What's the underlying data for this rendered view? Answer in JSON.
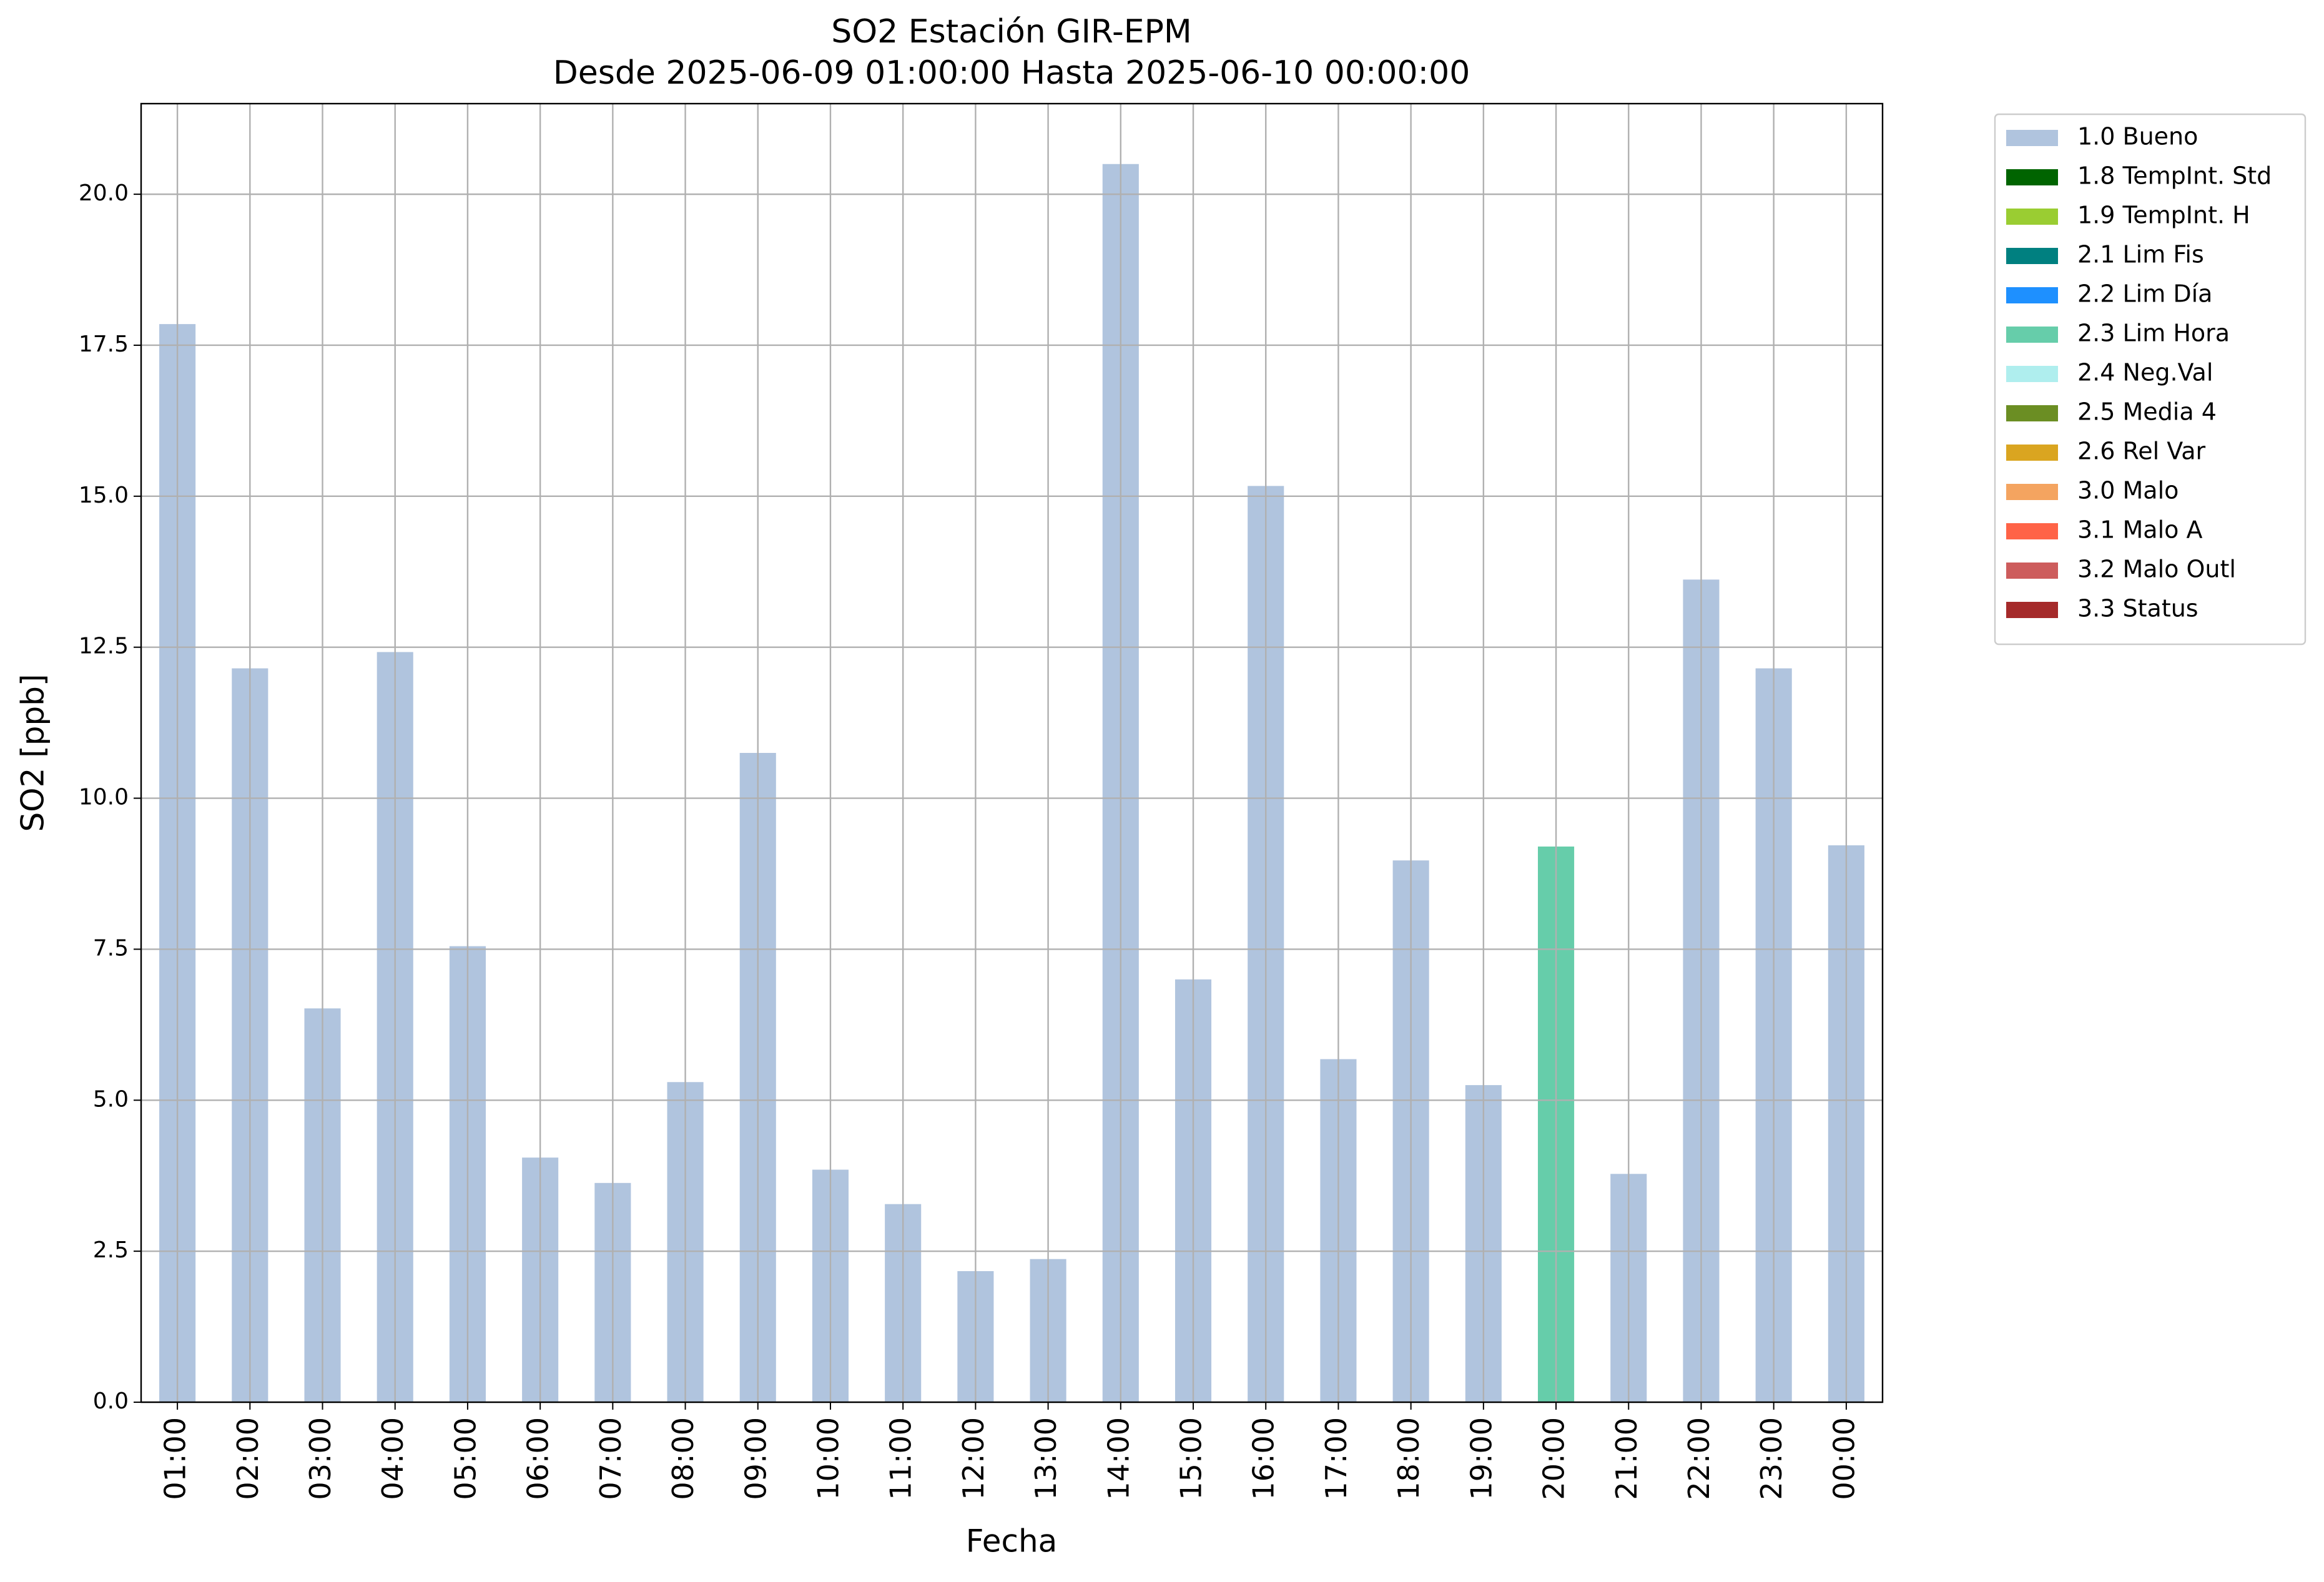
{
  "chart_data": {
    "type": "stacked_bar",
    "title": "SO2 Estación GIR-EPM",
    "subtitle": "Desde 2025-06-09 01:00:00 Hasta 2025-06-10 00:00:00",
    "x_label": "Fecha",
    "y_label": "SO2 [ppb]",
    "categories": [
      "01:00",
      "02:00",
      "03:00",
      "04:00",
      "05:00",
      "06:00",
      "07:00",
      "08:00",
      "09:00",
      "10:00",
      "11:00",
      "12:00",
      "13:00",
      "14:00",
      "15:00",
      "16:00",
      "17:00",
      "18:00",
      "19:00",
      "20:00",
      "21:00",
      "22:00",
      "23:00",
      "00:00"
    ],
    "series": [
      {
        "name": "1.0 Bueno",
        "color": "#b0c4de",
        "values": [
          17.85,
          12.15,
          6.52,
          12.42,
          7.55,
          4.05,
          3.63,
          5.3,
          10.75,
          3.85,
          3.28,
          2.17,
          2.37,
          20.5,
          7.0,
          15.17,
          5.68,
          8.97,
          5.25,
          null,
          3.78,
          13.62,
          12.15,
          9.22
        ]
      },
      {
        "name": "1.8 TempInt. Std",
        "color": "#006400",
        "values": [
          null,
          null,
          null,
          null,
          null,
          null,
          null,
          null,
          null,
          null,
          null,
          null,
          null,
          null,
          null,
          null,
          null,
          null,
          null,
          null,
          null,
          null,
          null,
          null
        ]
      },
      {
        "name": "1.9 TempInt. H",
        "color": "#9acd32",
        "values": [
          null,
          null,
          null,
          null,
          null,
          null,
          null,
          null,
          null,
          null,
          null,
          null,
          null,
          null,
          null,
          null,
          null,
          null,
          null,
          null,
          null,
          null,
          null,
          null
        ]
      },
      {
        "name": "2.1 Lim Fis",
        "color": "#008080",
        "values": [
          null,
          null,
          null,
          null,
          null,
          null,
          null,
          null,
          null,
          null,
          null,
          null,
          null,
          null,
          null,
          null,
          null,
          null,
          null,
          null,
          null,
          null,
          null,
          null
        ]
      },
      {
        "name": "2.2 Lim Día",
        "color": "#1e90ff",
        "values": [
          null,
          null,
          null,
          null,
          null,
          null,
          null,
          null,
          null,
          null,
          null,
          null,
          null,
          null,
          null,
          null,
          null,
          null,
          null,
          null,
          null,
          null,
          null,
          null
        ]
      },
      {
        "name": "2.3 Lim Hora",
        "color": "#66cdaa",
        "values": [
          null,
          null,
          null,
          null,
          null,
          null,
          null,
          null,
          null,
          null,
          null,
          null,
          null,
          null,
          null,
          null,
          null,
          null,
          null,
          9.2,
          null,
          null,
          null,
          null
        ]
      },
      {
        "name": "2.4 Neg.Val",
        "color": "#afeeee",
        "values": [
          null,
          null,
          null,
          null,
          null,
          null,
          null,
          null,
          null,
          null,
          null,
          null,
          null,
          null,
          null,
          null,
          null,
          null,
          null,
          null,
          null,
          null,
          null,
          null
        ]
      },
      {
        "name": "2.5 Media 4",
        "color": "#6b8e23",
        "values": [
          null,
          null,
          null,
          null,
          null,
          null,
          null,
          null,
          null,
          null,
          null,
          null,
          null,
          null,
          null,
          null,
          null,
          null,
          null,
          null,
          null,
          null,
          null,
          null
        ]
      },
      {
        "name": "2.6 Rel Var",
        "color": "#daa520",
        "values": [
          null,
          null,
          null,
          null,
          null,
          null,
          null,
          null,
          null,
          null,
          null,
          null,
          null,
          null,
          null,
          null,
          null,
          null,
          null,
          null,
          null,
          null,
          null,
          null
        ]
      },
      {
        "name": "3.0 Malo",
        "color": "#f4a460",
        "values": [
          null,
          null,
          null,
          null,
          null,
          null,
          null,
          null,
          null,
          null,
          null,
          null,
          null,
          null,
          null,
          null,
          null,
          null,
          null,
          null,
          null,
          null,
          null,
          null
        ]
      },
      {
        "name": "3.1 Malo A",
        "color": "#ff6347",
        "values": [
          null,
          null,
          null,
          null,
          null,
          null,
          null,
          null,
          null,
          null,
          null,
          null,
          null,
          null,
          null,
          null,
          null,
          null,
          null,
          null,
          null,
          null,
          null,
          null
        ]
      },
      {
        "name": "3.2 Malo Outl",
        "color": "#cd5c5c",
        "values": [
          null,
          null,
          null,
          null,
          null,
          null,
          null,
          null,
          null,
          null,
          null,
          null,
          null,
          null,
          null,
          null,
          null,
          null,
          null,
          null,
          null,
          null,
          null,
          null
        ]
      },
      {
        "name": "3.3 Status",
        "color": "#a52a2a",
        "values": [
          null,
          null,
          null,
          null,
          null,
          null,
          null,
          null,
          null,
          null,
          null,
          null,
          null,
          null,
          null,
          null,
          null,
          null,
          null,
          null,
          null,
          null,
          null,
          null
        ]
      }
    ],
    "ylim": [
      0,
      21.5
    ],
    "yticks": [
      {
        "value": 0,
        "label": "0.0"
      },
      2.5,
      {
        "value": 5,
        "label": "5.0"
      },
      7.5,
      {
        "value": 10,
        "label": "10.0"
      },
      12.5,
      {
        "value": 15,
        "label": "15.0"
      },
      17.5,
      {
        "value": 20,
        "label": "20.0"
      }
    ],
    "grid": true,
    "legend": "outside right"
  }
}
